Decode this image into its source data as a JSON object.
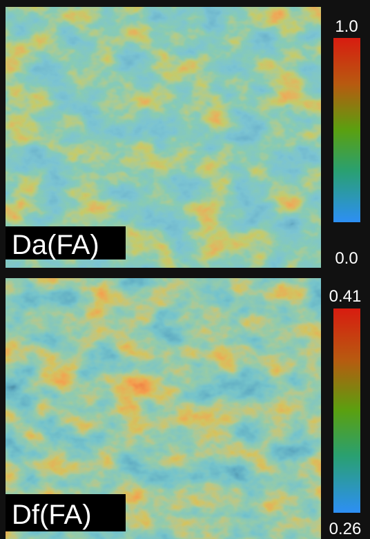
{
  "panels": [
    {
      "label": "Da(FA)",
      "colorbar": {
        "max": "1.0",
        "min": "0.0"
      }
    },
    {
      "label": "Df(FA)",
      "colorbar": {
        "max": "0.41",
        "min": "0.26"
      }
    }
  ]
}
